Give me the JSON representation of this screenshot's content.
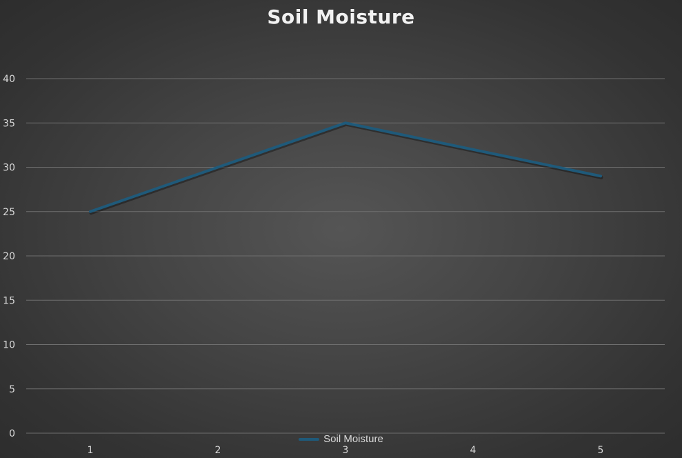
{
  "chart_data": {
    "type": "line",
    "title": "Soil Moisture",
    "categories": [
      "1",
      "2",
      "3",
      "4",
      "5"
    ],
    "series": [
      {
        "name": "Soil Moisture",
        "values": [
          25,
          30,
          35,
          32,
          29
        ],
        "color": "#1f5a7a"
      }
    ],
    "yticks": [
      "0",
      "5",
      "10",
      "15",
      "20",
      "25",
      "30",
      "35",
      "40"
    ],
    "ylim": [
      0,
      40
    ],
    "grid": true,
    "legend_position": "bottom"
  }
}
